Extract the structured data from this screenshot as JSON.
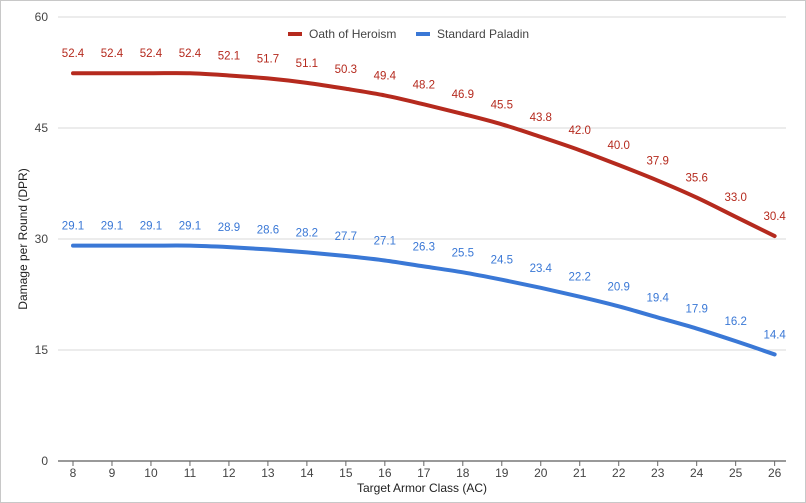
{
  "chart_data": {
    "type": "line",
    "title": "",
    "xlabel": "Target Armor Class (AC)",
    "ylabel": "Damage per Round (DPR)",
    "ylim": [
      0,
      60
    ],
    "yticks": [
      0,
      15,
      30,
      45,
      60
    ],
    "grid": true,
    "legend_position": "top",
    "x": [
      8,
      9,
      10,
      11,
      12,
      13,
      14,
      15,
      16,
      17,
      18,
      19,
      20,
      21,
      22,
      23,
      24,
      25,
      26
    ],
    "series": [
      {
        "name": "Oath of Heroism",
        "color": "#b52a1e",
        "values": [
          52.4,
          52.4,
          52.4,
          52.4,
          52.1,
          51.7,
          51.1,
          50.3,
          49.4,
          48.2,
          46.9,
          45.5,
          43.8,
          42.0,
          40.0,
          37.9,
          35.6,
          33.0,
          30.4
        ],
        "labels": [
          "52.4",
          "52.4",
          "52.4",
          "52.4",
          "52.1",
          "51.7",
          "51.1",
          "50.3",
          "49.4",
          "48.2",
          "46.9",
          "45.5",
          "43.8",
          "42.0",
          "40.0",
          "37.9",
          "35.6",
          "33.0",
          "30.4"
        ]
      },
      {
        "name": "Standard Paladin",
        "color": "#3a78d6",
        "values": [
          29.1,
          29.1,
          29.1,
          29.1,
          28.9,
          28.6,
          28.2,
          27.7,
          27.1,
          26.3,
          25.5,
          24.5,
          23.4,
          22.2,
          20.9,
          19.4,
          17.9,
          16.2,
          14.4
        ],
        "labels": [
          "29.1",
          "29.1",
          "29.1",
          "29.1",
          "28.9",
          "28.6",
          "28.2",
          "27.7",
          "27.1",
          "26.3",
          "25.5",
          "24.5",
          "23.4",
          "22.2",
          "20.9",
          "19.4",
          "17.9",
          "16.2",
          "14.4"
        ]
      }
    ]
  }
}
